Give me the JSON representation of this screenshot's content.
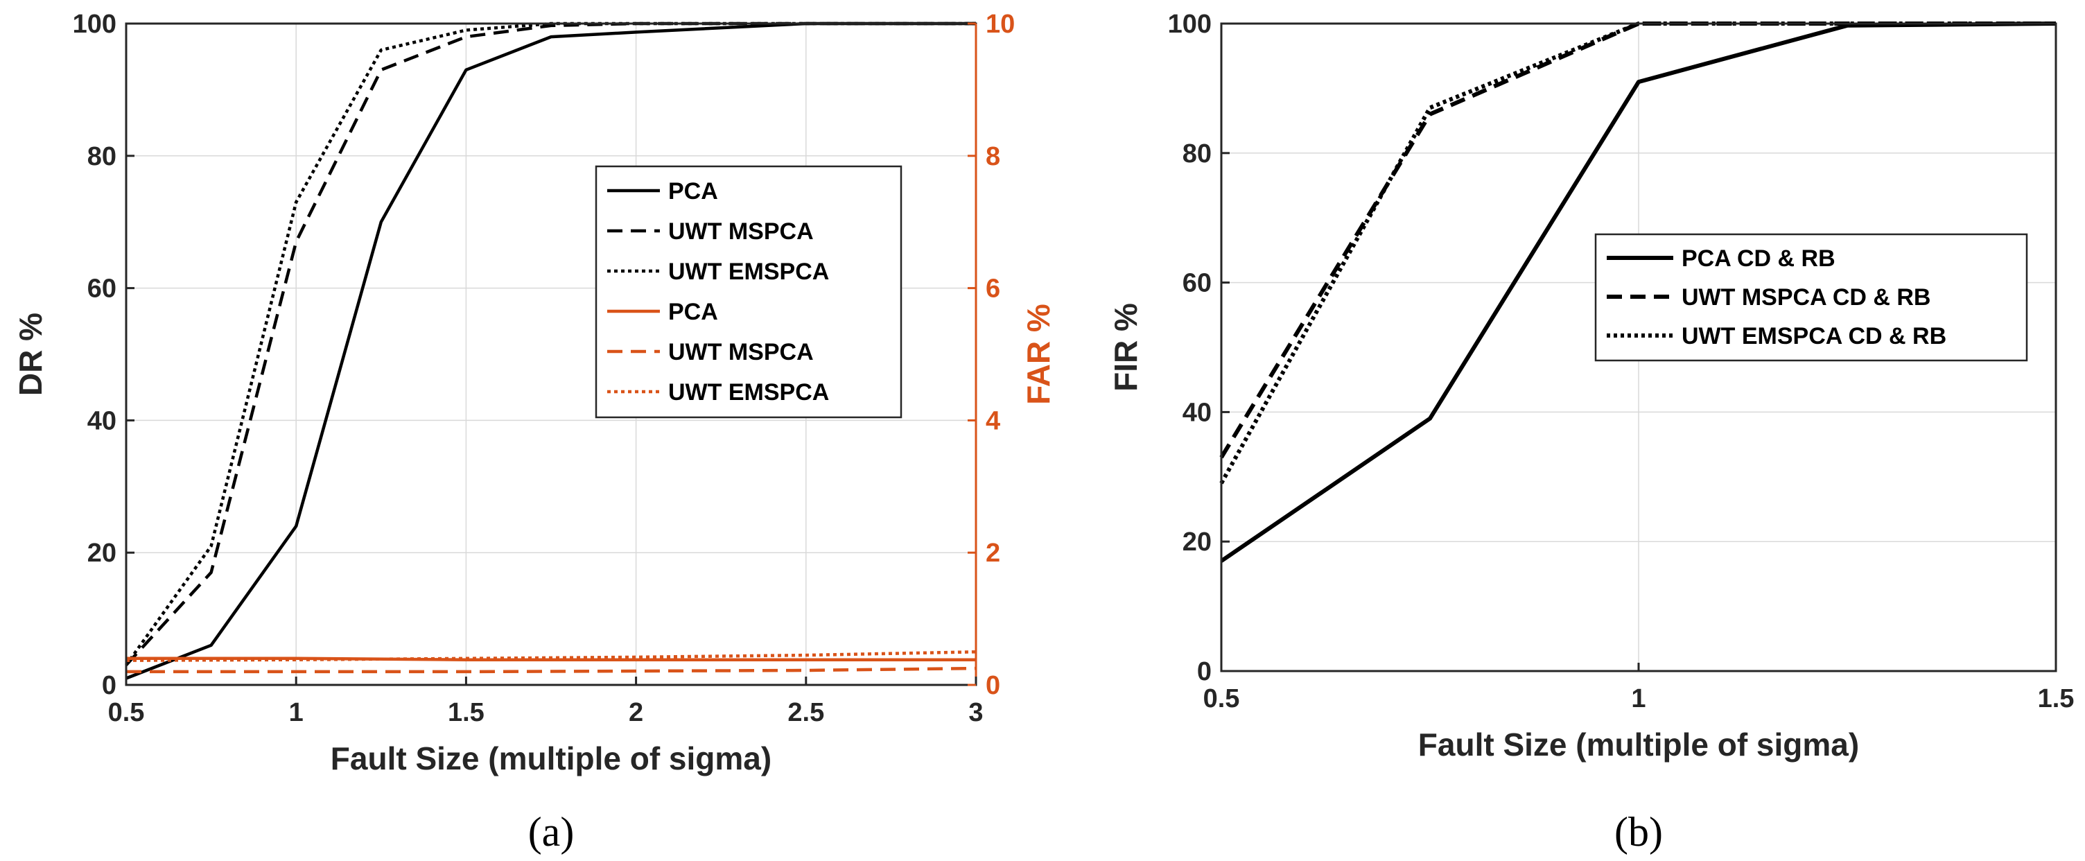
{
  "colors": {
    "black": "#000000",
    "far": "#D95319",
    "grid": "#D9D9D9",
    "axis": "#262626"
  },
  "chart_data": [
    {
      "type": "line",
      "caption": "(a)",
      "xlabel": "Fault Size (multiple of sigma)",
      "ylabel": "DR %",
      "ylabel_right": "FAR %",
      "xlim": [
        0.5,
        3
      ],
      "ylim": [
        0,
        100
      ],
      "ylim_right": [
        0,
        10
      ],
      "x_ticks": [
        "0.5",
        "1",
        "1.5",
        "2",
        "2.5",
        "3"
      ],
      "y_ticks": [
        "0",
        "20",
        "40",
        "60",
        "80",
        "100"
      ],
      "y_ticks_right": [
        "0",
        "2",
        "4",
        "6",
        "8",
        "10"
      ],
      "grid": true,
      "legend_position": "center-right",
      "series": [
        {
          "name": "PCA",
          "axis": "left",
          "style": "solid",
          "color": "#000000",
          "x": [
            0.5,
            0.75,
            1,
            1.25,
            1.5,
            1.75,
            2,
            2.5,
            3
          ],
          "y": [
            1,
            6,
            24,
            70,
            93,
            98,
            98.7,
            100,
            100
          ]
        },
        {
          "name": "UWT MSPCA",
          "axis": "left",
          "style": "dashed",
          "color": "#000000",
          "x": [
            0.5,
            0.75,
            1,
            1.25,
            1.5,
            1.75,
            2,
            2.5,
            3
          ],
          "y": [
            3,
            17,
            67,
            93,
            98,
            99.7,
            100,
            100,
            100
          ]
        },
        {
          "name": "UWT EMSPCA",
          "axis": "left",
          "style": "dotted",
          "color": "#000000",
          "x": [
            0.5,
            0.75,
            1,
            1.25,
            1.5,
            1.75,
            2,
            2.5,
            3
          ],
          "y": [
            3,
            21,
            73,
            96,
            99,
            100,
            100,
            100,
            100
          ]
        },
        {
          "name": "PCA",
          "axis": "right",
          "style": "solid",
          "color": "#D95319",
          "x": [
            0.5,
            1,
            1.5,
            2,
            2.5,
            3
          ],
          "y": [
            0.4,
            0.4,
            0.38,
            0.38,
            0.38,
            0.38
          ]
        },
        {
          "name": "UWT MSPCA",
          "axis": "right",
          "style": "dashed",
          "color": "#D95319",
          "x": [
            0.5,
            1,
            1.5,
            2,
            2.5,
            3
          ],
          "y": [
            0.2,
            0.2,
            0.2,
            0.21,
            0.22,
            0.25
          ]
        },
        {
          "name": "UWT EMSPCA",
          "axis": "right",
          "style": "dotted",
          "color": "#D95319",
          "x": [
            0.5,
            1,
            1.5,
            2,
            2.5,
            3
          ],
          "y": [
            0.37,
            0.38,
            0.4,
            0.42,
            0.45,
            0.5
          ]
        }
      ]
    },
    {
      "type": "line",
      "caption": "(b)",
      "xlabel": "Fault Size (multiple of sigma)",
      "ylabel": "FIR %",
      "xlim": [
        0.5,
        1.5
      ],
      "ylim": [
        0,
        100
      ],
      "x_ticks": [
        "0.5",
        "1",
        "1.5"
      ],
      "y_ticks": [
        "0",
        "20",
        "40",
        "60",
        "80",
        "100"
      ],
      "grid": true,
      "legend_position": "center-right",
      "series": [
        {
          "name": "PCA CD & RB",
          "style": "solid",
          "color": "#000000",
          "x": [
            0.5,
            0.75,
            1,
            1.25,
            1.5
          ],
          "y": [
            17,
            39,
            91,
            99.7,
            100
          ]
        },
        {
          "name": "UWT MSPCA CD & RB",
          "style": "dashed",
          "color": "#000000",
          "x": [
            0.5,
            0.75,
            1,
            1.25,
            1.5
          ],
          "y": [
            33,
            86,
            100,
            100,
            100
          ]
        },
        {
          "name": "UWT EMSPCA CD & RB",
          "style": "dotted",
          "color": "#000000",
          "x": [
            0.5,
            0.75,
            1,
            1.25,
            1.5
          ],
          "y": [
            29,
            87,
            100,
            100,
            100
          ]
        }
      ]
    }
  ]
}
